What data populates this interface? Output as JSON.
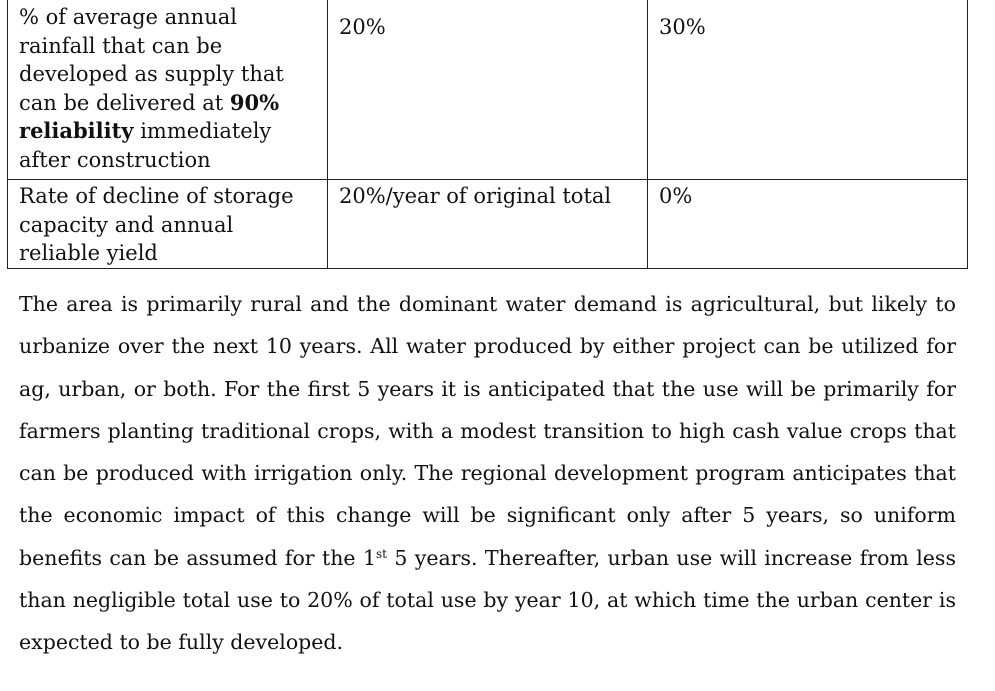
{
  "table": {
    "rows": [
      {
        "criterion_parts": {
          "a": "% of average annual rainfall that can be developed as supply  that can be delivered at ",
          "bold": "90% reliability",
          "b": " immediately after construction"
        },
        "option_a": "20%",
        "option_b": "30%"
      },
      {
        "criterion": "Rate of decline of storage capacity and annual reliable yield",
        "option_a": "20%/year of original total",
        "option_b": "0%"
      }
    ]
  },
  "paragraph": {
    "part1": "The area is primarily rural and the dominant water demand is agricultural, but likely to urbanize over the next 10 years. All water produced by either project can be utilized for ag, urban, or both. For the first 5 years it is anticipated that the use will be primarily for farmers planting traditional crops, with a modest transition to high cash value crops that can be produced with irrigation only. The regional development program anticipates that the economic impact of this change will be significant only after 5 years, so uniform benefits can be assumed for the 1",
    "superscript": "st",
    "part2": " 5 years. Thereafter, urban use will increase from less than negligible total use to 20% of total use by year 10, at which time the urban center is expected to be fully developed."
  }
}
